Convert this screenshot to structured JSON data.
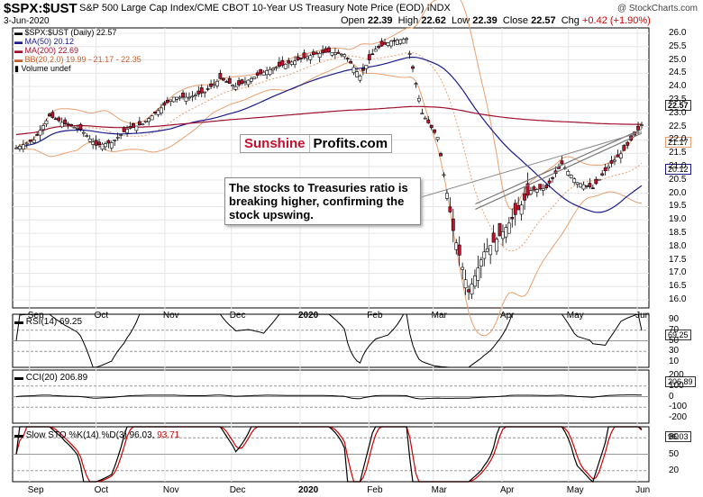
{
  "header": {
    "symbol": "$SPX:$UST",
    "description": "S&P 500 Large Cap Index/CME CBOT 10-Year US Treasury Note Price (EOD)  INDX",
    "date": "3-Jun-2020",
    "credit": "@ StockCharts.com",
    "open_label": "Open",
    "open": "22.39",
    "high_label": "High",
    "high": "22.62",
    "low_label": "Low",
    "low": "22.39",
    "close_label": "Close",
    "close": "22.57",
    "chg_label": "Chg",
    "chg": "+0.42 (+1.90%)"
  },
  "legend": {
    "price": "$SPX:$UST (Daily) 22.57",
    "ma50": "MA(50) 20.12",
    "ma200": "MA(200) 22.69",
    "bb": "BB(20,2.0) 19.99 - 21.17 - 22.35",
    "volume": "Volume undef"
  },
  "watermark": {
    "part1": "Sunshine",
    "part2": "Profits.com"
  },
  "annotation": "The stocks to Treasuries ratio is breaking higher, confirming the stock upswing.",
  "panels": {
    "rsi_label": "RSI(14) 69.25",
    "cci_label": "CCI(20) 206.89",
    "sto_label": "Slow STO %K(14) %D(3) 96.03,",
    "sto_label_d": "93.71"
  },
  "price_tags": {
    "close": "22.57",
    "bb_mid": "21.17",
    "ma50": "20.12"
  },
  "indicator_tags": {
    "rsi": "69.25",
    "cci": "206.89",
    "sto": "96.03"
  },
  "price_axis": [
    "26.0",
    "25.5",
    "25.0",
    "24.5",
    "24.0",
    "23.5",
    "23.0",
    "22.5",
    "22.0",
    "21.5",
    "21.0",
    "20.5",
    "20.0",
    "19.5",
    "19.0",
    "18.5",
    "18.0",
    "17.5",
    "17.0",
    "16.5",
    "16.0"
  ],
  "rsi_axis": [
    "90",
    "70",
    "50",
    "30",
    "10"
  ],
  "cci_axis": [
    "200",
    "100",
    "0",
    "-100",
    "-200"
  ],
  "sto_axis": [
    "80",
    "50",
    "20"
  ],
  "months": [
    "Sep",
    "Oct",
    "Nov",
    "Dec",
    "2020",
    "Feb",
    "Mar",
    "Apr",
    "May",
    "Jun"
  ],
  "colors": {
    "ma50": "#1a1a8c",
    "ma200": "#a0102e",
    "bb": "#e8a070",
    "up": "#ffffff",
    "down": "#c8102e",
    "osc_pos": "#4f7a48",
    "osc_neg": "#8a4a4a",
    "stoD": "#d00000"
  },
  "chart_data": {
    "type": "candlestick",
    "y_range": [
      15.7,
      26.2
    ],
    "x_range": [
      "2019-08-26",
      "2020-06-03"
    ],
    "close_series": [
      [
        "2019-08-26",
        21.7
      ],
      [
        "2019-09-03",
        22.0
      ],
      [
        "2019-09-10",
        22.9
      ],
      [
        "2019-09-17",
        22.6
      ],
      [
        "2019-09-24",
        22.4
      ],
      [
        "2019-10-01",
        21.8
      ],
      [
        "2019-10-08",
        21.9
      ],
      [
        "2019-10-15",
        22.4
      ],
      [
        "2019-10-22",
        22.6
      ],
      [
        "2019-10-29",
        23.1
      ],
      [
        "2019-11-05",
        23.6
      ],
      [
        "2019-11-12",
        23.6
      ],
      [
        "2019-11-19",
        23.8
      ],
      [
        "2019-11-26",
        24.3
      ],
      [
        "2019-12-03",
        24.0
      ],
      [
        "2019-12-10",
        24.3
      ],
      [
        "2019-12-17",
        24.6
      ],
      [
        "2019-12-24",
        24.8
      ],
      [
        "2019-12-31",
        25.0
      ],
      [
        "2020-01-07",
        25.2
      ],
      [
        "2020-01-14",
        25.3
      ],
      [
        "2020-01-21",
        25.2
      ],
      [
        "2020-01-28",
        24.4
      ],
      [
        "2020-02-04",
        25.4
      ],
      [
        "2020-02-11",
        25.7
      ],
      [
        "2020-02-18",
        25.8
      ],
      [
        "2020-02-25",
        23.0
      ],
      [
        "2020-03-03",
        22.1
      ],
      [
        "2020-03-10",
        18.6
      ],
      [
        "2020-03-17",
        16.3
      ],
      [
        "2020-03-24",
        17.8
      ],
      [
        "2020-03-31",
        18.4
      ],
      [
        "2020-04-07",
        19.2
      ],
      [
        "2020-04-14",
        20.1
      ],
      [
        "2020-04-21",
        20.2
      ],
      [
        "2020-04-28",
        21.1
      ],
      [
        "2020-05-05",
        20.4
      ],
      [
        "2020-05-12",
        20.2
      ],
      [
        "2020-05-19",
        21.0
      ],
      [
        "2020-05-26",
        21.6
      ],
      [
        "2020-06-03",
        22.57
      ]
    ],
    "ma50_last": 20.12,
    "ma200_last": 22.69,
    "bb_last": [
      19.99,
      21.17,
      22.35
    ],
    "rsi_last": 69.25,
    "cci_last": 206.89,
    "sto_k_last": 96.03,
    "sto_d_last": 93.71
  }
}
